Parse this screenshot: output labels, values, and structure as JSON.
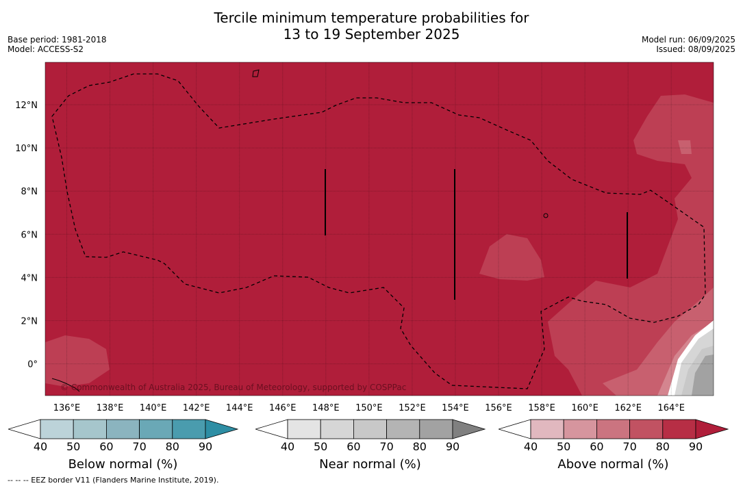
{
  "title_line1": "Tercile minimum temperature probabilities for",
  "title_line2": "13 to 19 September 2025",
  "meta_left": [
    "Base period: 1981-2018",
    "Model: ACCESS-S2"
  ],
  "meta_right": [
    "Model run: 06/09/2025",
    "Issued: 08/09/2025"
  ],
  "copyright": "© Commonwealth of Australia 2025, Bureau of Meteorology, supported by COSPPac",
  "footer": "--  --  -- EEZ border V11 (Flanders Marine Institute, 2019).",
  "lon_ticks": [
    "136°E",
    "138°E",
    "140°E",
    "142°E",
    "144°E",
    "146°E",
    "148°E",
    "150°E",
    "152°E",
    "154°E",
    "156°E",
    "158°E",
    "160°E",
    "162°E",
    "164°E"
  ],
  "lat_ticks": [
    "12°N",
    "10°N",
    "8°N",
    "6°N",
    "4°N",
    "2°N",
    "0°"
  ],
  "colorbars": [
    {
      "label": "Below normal (%)",
      "ticks": [
        "40",
        "50",
        "60",
        "70",
        "80",
        "90"
      ],
      "colors": [
        "#ffffff",
        "#bcd3d9",
        "#a6c6cc",
        "#8bb4bf",
        "#6aa8b6",
        "#4a9cae",
        "#2e8ea4"
      ]
    },
    {
      "label": "Near normal (%)",
      "ticks": [
        "40",
        "50",
        "60",
        "70",
        "80",
        "90"
      ],
      "colors": [
        "#ffffff",
        "#e4e4e4",
        "#d6d6d6",
        "#c8c8c8",
        "#b4b4b4",
        "#a2a2a2",
        "#808080"
      ]
    },
    {
      "label": "Above normal (%)",
      "ticks": [
        "40",
        "50",
        "60",
        "70",
        "80",
        "90"
      ],
      "colors": [
        "#ffffff",
        "#e1b8bf",
        "#d6959e",
        "#cb7480",
        "#c15262",
        "#b72e45",
        "#b01e3a"
      ]
    }
  ],
  "map_colors": {
    "dominant": "#b01e3a",
    "above_70": "#bd3f54",
    "above_60": "#c8606f",
    "above_50": "#d4858f",
    "near_50": "#d6d6d6",
    "near_60": "#c8c8c8",
    "near_70": "#a2a2a2"
  }
}
